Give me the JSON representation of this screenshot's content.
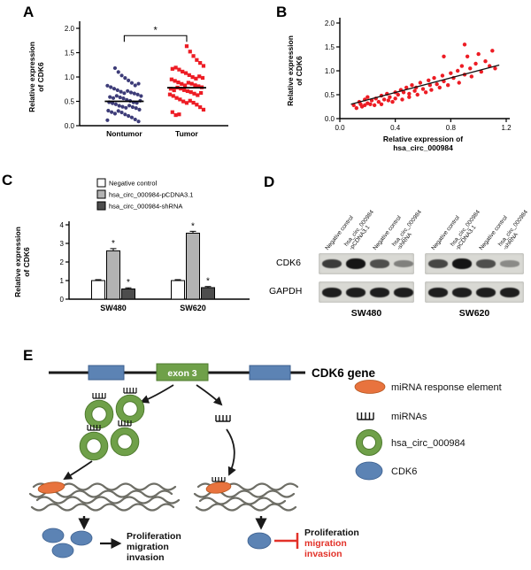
{
  "panel_labels": {
    "A": "A",
    "B": "B",
    "C": "C",
    "D": "D",
    "E": "E"
  },
  "colors": {
    "nontumor_blue": "#3d3c78",
    "tumor_red": "#ed1c24",
    "circ_green": "#6fa049",
    "circ_green_dark": "#4e7a2e",
    "mre_orange": "#e8733e",
    "cdk6_blue": "#5c83b4",
    "mrna_gray": "#6e6e66",
    "inhibit_red": "#e23128"
  },
  "chart_data": [
    {
      "id": "chartA",
      "type": "scatter",
      "ylabel_lines": [
        "Relative expression",
        "of CDK6"
      ],
      "ylim": [
        0,
        2.0
      ],
      "yticks": [
        0,
        0.5,
        1.0,
        1.5,
        2.0
      ],
      "ytick_labels": [
        "0.0",
        "0.5",
        "1.0",
        "1.5",
        "2.0"
      ],
      "significance": "*",
      "groups": [
        {
          "name": "Nontumor",
          "marker": "circle",
          "color": "#3d3c78",
          "median": 0.5,
          "values": [
            0.08,
            0.12,
            0.15,
            0.18,
            0.2,
            0.22,
            0.25,
            0.27,
            0.28,
            0.3,
            0.32,
            0.33,
            0.35,
            0.36,
            0.38,
            0.4,
            0.41,
            0.42,
            0.44,
            0.45,
            0.46,
            0.48,
            0.5,
            0.5,
            0.52,
            0.53,
            0.55,
            0.56,
            0.58,
            0.6,
            0.61,
            0.62,
            0.64,
            0.65,
            0.66,
            0.68,
            0.7,
            0.72,
            0.74,
            0.76,
            0.78,
            0.8,
            0.83,
            0.86,
            0.9,
            0.94,
            0.98,
            1.02,
            1.08,
            1.15
          ]
        },
        {
          "name": "Tumor",
          "marker": "square",
          "color": "#ed1c24",
          "median": 0.78,
          "values": [
            0.2,
            0.25,
            0.3,
            0.34,
            0.38,
            0.42,
            0.45,
            0.48,
            0.5,
            0.52,
            0.55,
            0.57,
            0.6,
            0.62,
            0.64,
            0.66,
            0.68,
            0.7,
            0.71,
            0.72,
            0.74,
            0.75,
            0.76,
            0.78,
            0.8,
            0.81,
            0.82,
            0.84,
            0.85,
            0.86,
            0.88,
            0.9,
            0.92,
            0.94,
            0.96,
            0.98,
            1.0,
            1.02,
            1.05,
            1.08,
            1.1,
            1.13,
            1.16,
            1.2,
            1.25,
            1.3,
            1.35,
            1.42,
            1.5,
            1.6
          ]
        }
      ]
    },
    {
      "id": "chartB",
      "type": "scatter",
      "xlabel_lines": [
        "Relative expression of",
        "hsa_circ_000984"
      ],
      "ylabel_lines": [
        "Relative expression",
        "of CDK6"
      ],
      "xlim": [
        0,
        1.2
      ],
      "ylim": [
        0,
        2.0
      ],
      "xticks": [
        0,
        0.4,
        0.8,
        1.2
      ],
      "xtick_labels": [
        "0.0",
        "0.4",
        "0.8",
        "1.2"
      ],
      "yticks": [
        0,
        0.5,
        1.0,
        1.5,
        2.0
      ],
      "ytick_labels": [
        "0.0",
        "0.5",
        "1.0",
        "1.5",
        "2.0"
      ],
      "color": "#ed1c24",
      "trendline": {
        "x1": 0.08,
        "y1": 0.3,
        "x2": 1.15,
        "y2": 1.12
      },
      "points": [
        [
          0.1,
          0.28
        ],
        [
          0.12,
          0.22
        ],
        [
          0.14,
          0.35
        ],
        [
          0.15,
          0.3
        ],
        [
          0.16,
          0.25
        ],
        [
          0.18,
          0.4
        ],
        [
          0.18,
          0.28
        ],
        [
          0.2,
          0.32
        ],
        [
          0.2,
          0.45
        ],
        [
          0.22,
          0.3
        ],
        [
          0.23,
          0.38
        ],
        [
          0.25,
          0.28
        ],
        [
          0.26,
          0.42
        ],
        [
          0.28,
          0.35
        ],
        [
          0.3,
          0.48
        ],
        [
          0.3,
          0.3
        ],
        [
          0.32,
          0.4
        ],
        [
          0.34,
          0.52
        ],
        [
          0.35,
          0.38
        ],
        [
          0.36,
          0.45
        ],
        [
          0.38,
          0.35
        ],
        [
          0.4,
          0.55
        ],
        [
          0.4,
          0.42
        ],
        [
          0.42,
          0.5
        ],
        [
          0.44,
          0.6
        ],
        [
          0.45,
          0.4
        ],
        [
          0.46,
          0.55
        ],
        [
          0.48,
          0.65
        ],
        [
          0.5,
          0.52
        ],
        [
          0.5,
          0.45
        ],
        [
          0.52,
          0.7
        ],
        [
          0.54,
          0.58
        ],
        [
          0.55,
          0.65
        ],
        [
          0.56,
          0.5
        ],
        [
          0.58,
          0.75
        ],
        [
          0.6,
          0.62
        ],
        [
          0.62,
          0.55
        ],
        [
          0.64,
          0.8
        ],
        [
          0.65,
          0.7
        ],
        [
          0.66,
          0.6
        ],
        [
          0.68,
          0.85
        ],
        [
          0.7,
          0.72
        ],
        [
          0.72,
          0.65
        ],
        [
          0.74,
          0.9
        ],
        [
          0.75,
          0.78
        ],
        [
          0.75,
          1.3
        ],
        [
          0.78,
          0.7
        ],
        [
          0.8,
          0.95
        ],
        [
          0.82,
          0.85
        ],
        [
          0.85,
          1.0
        ],
        [
          0.86,
          0.75
        ],
        [
          0.88,
          1.1
        ],
        [
          0.9,
          0.92
        ],
        [
          0.9,
          1.55
        ],
        [
          0.92,
          1.3
        ],
        [
          0.94,
          1.05
        ],
        [
          0.95,
          0.88
        ],
        [
          0.98,
          1.15
        ],
        [
          1.0,
          1.35
        ],
        [
          1.02,
          0.98
        ],
        [
          1.05,
          1.2
        ],
        [
          1.08,
          1.1
        ],
        [
          1.1,
          1.42
        ],
        [
          1.12,
          1.05
        ]
      ]
    },
    {
      "id": "chartC",
      "type": "bar",
      "ylabel_lines": [
        "Relative expression",
        "of CDK6"
      ],
      "categories": [
        "SW480",
        "SW620"
      ],
      "ylim": [
        0,
        4
      ],
      "yticks": [
        0,
        1,
        2,
        3,
        4
      ],
      "ytick_labels": [
        "0",
        "1",
        "2",
        "3",
        "4"
      ],
      "legend_position": "top",
      "series": [
        {
          "name": "Negative control",
          "color": "#ffffff",
          "values": [
            1.0,
            1.0
          ],
          "errors": [
            0.05,
            0.05
          ],
          "sig": [
            "",
            ""
          ]
        },
        {
          "name": "hsa_circ_000984-pCDNA3.1",
          "color": "#b3b3b3",
          "values": [
            2.6,
            3.55
          ],
          "errors": [
            0.12,
            0.1
          ],
          "sig": [
            "*",
            "*"
          ]
        },
        {
          "name": "hsa_circ_000984-shRNA",
          "color": "#4d4d4d",
          "values": [
            0.55,
            0.62
          ],
          "errors": [
            0.06,
            0.06
          ],
          "sig": [
            "*",
            "*"
          ]
        }
      ]
    }
  ],
  "panelD": {
    "row_labels": [
      "CDK6",
      "GAPDH"
    ],
    "cell_lines": [
      "SW480",
      "SW620"
    ],
    "lane_labels": [
      [
        "Negative control"
      ],
      [
        "hsa_circ_000984",
        "-pCDNA3.1"
      ],
      [
        "Negative control"
      ],
      [
        "hsa_circ_000984",
        "-shRNA"
      ]
    ],
    "blots": [
      {
        "cell_line": "SW480",
        "CDK6": [
          0.8,
          1.0,
          0.7,
          0.45
        ],
        "GAPDH": [
          0.95,
          0.95,
          0.95,
          0.95
        ]
      },
      {
        "cell_line": "SW620",
        "CDK6": [
          0.75,
          1.0,
          0.7,
          0.4
        ],
        "GAPDH": [
          0.95,
          0.95,
          0.95,
          0.95
        ]
      }
    ]
  },
  "panelE": {
    "gene_label": "CDK6 gene",
    "exon_label": "exon 3",
    "legend": [
      {
        "icon": "mre-oval-icon",
        "label": "miRNA response element"
      },
      {
        "icon": "mirna-comb-icon",
        "label": "miRNAs"
      },
      {
        "icon": "circ-donut-icon",
        "label": "hsa_circ_000984"
      },
      {
        "icon": "cdk6-oval-icon",
        "label": "CDK6"
      }
    ],
    "left_outcome": [
      "Proliferation",
      "migration",
      "invasion"
    ],
    "right_outcome": [
      "Proliferation",
      "migration",
      "invasion"
    ]
  }
}
